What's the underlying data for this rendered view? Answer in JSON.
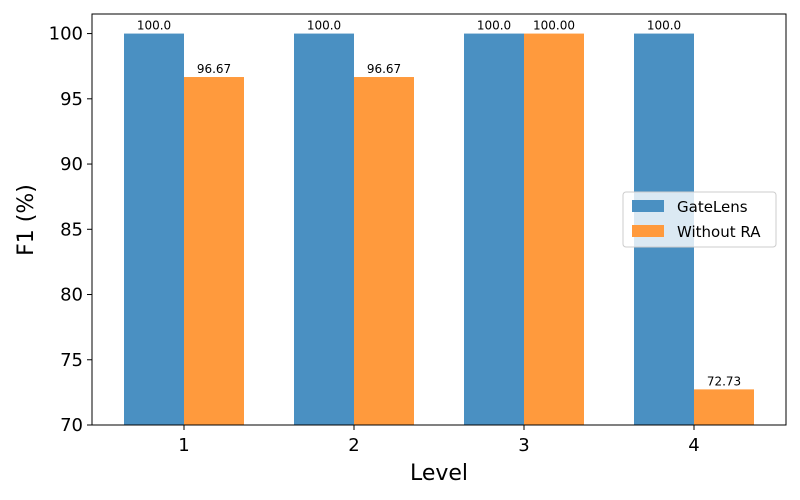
{
  "chart_data": {
    "type": "bar",
    "xlabel": "Level",
    "ylabel": "F1 (%)",
    "categories": [
      "1",
      "2",
      "3",
      "4"
    ],
    "ylim": [
      70,
      101.5
    ],
    "yticks": [
      70,
      75,
      80,
      85,
      90,
      95,
      100
    ],
    "grid": false,
    "legend_position": "center-right",
    "series": [
      {
        "name": "GateLens",
        "color": "#4a90c2",
        "values": [
          100.0,
          100.0,
          100.0,
          100.0
        ],
        "labels": [
          "100.0",
          "100.0",
          "100.0",
          "100.0"
        ]
      },
      {
        "name": "Without RA",
        "color": "#ff9a3d",
        "values": [
          96.67,
          96.67,
          100.0,
          72.73
        ],
        "labels": [
          "96.67",
          "96.67",
          "100.00",
          "72.73"
        ]
      }
    ]
  }
}
